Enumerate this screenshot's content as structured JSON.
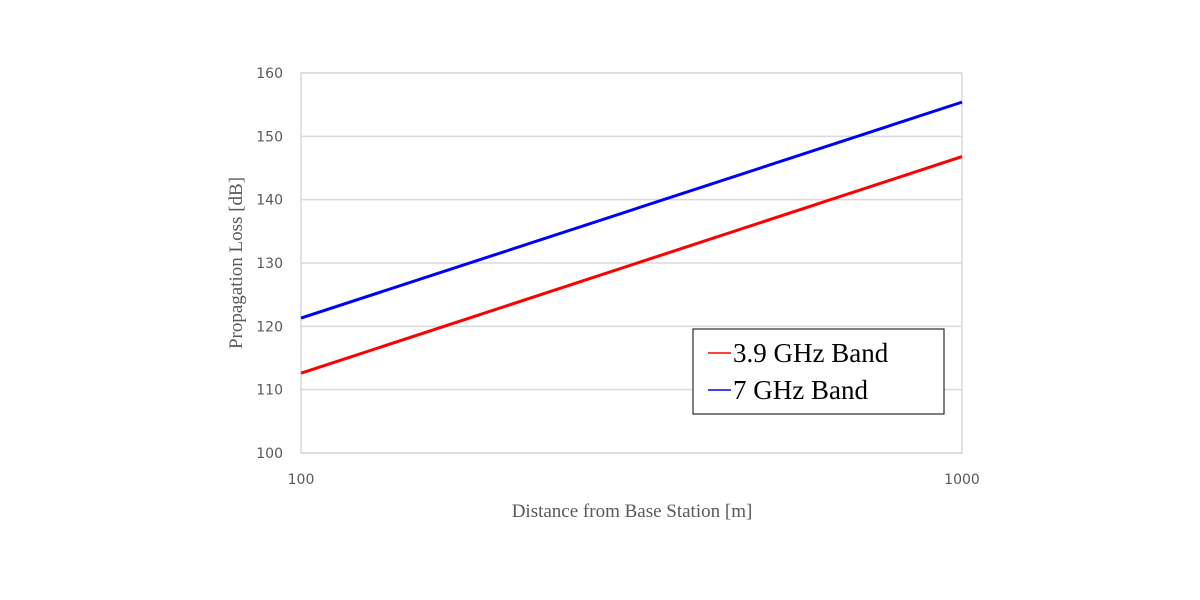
{
  "chart_data": {
    "type": "line",
    "title": "",
    "xlabel": "Distance from Base Station [m]",
    "ylabel": "Propagation Loss  [dB]",
    "xscale": "log",
    "xlim": [
      100,
      1000
    ],
    "ylim": [
      100,
      160
    ],
    "x_ticks": [
      "100",
      "1000"
    ],
    "y_ticks": [
      "100",
      "110",
      "120",
      "130",
      "140",
      "150",
      "160"
    ],
    "grid": true,
    "legend_position": "lower right inside",
    "series": [
      {
        "name": "3.9 GHz Band",
        "color": "#ff0000",
        "x": [
          100,
          1000
        ],
        "values": [
          112.6,
          146.8
        ]
      },
      {
        "name": "7 GHz Band",
        "color": "#0000ff",
        "x": [
          100,
          1000
        ],
        "values": [
          121.3,
          155.4
        ]
      }
    ]
  }
}
